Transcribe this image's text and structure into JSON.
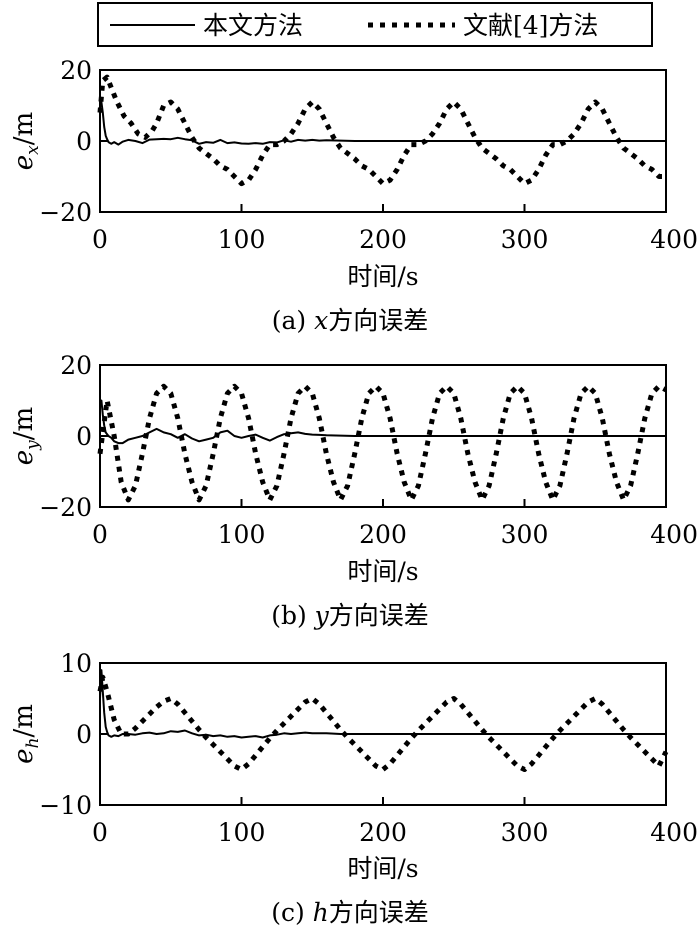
{
  "legend": {
    "items": [
      {
        "label": "本文方法",
        "style": "solid"
      },
      {
        "label": "文献[4]方法",
        "style": "dotted"
      }
    ]
  },
  "colors": {
    "line": "#000000",
    "background": "#ffffff"
  },
  "chart_data": [
    {
      "type": "line",
      "ylabel": {
        "var": "e",
        "sub": "x",
        "unit": "/m"
      },
      "xlabel": "时间/s",
      "caption": {
        "prefix": "(a) ",
        "var": "x",
        "suffix": "方向误差"
      },
      "xlim": [
        0,
        400
      ],
      "ylim": [
        -20,
        20
      ],
      "xticks": [
        0,
        100,
        200,
        300,
        400
      ],
      "yticks": [
        -20,
        0,
        20
      ],
      "grid": false,
      "series": [
        {
          "name": "本文方法",
          "style": "solid",
          "x": [
            0,
            1,
            2,
            3,
            4,
            5,
            6,
            8,
            10,
            13,
            16,
            20,
            25,
            30,
            35,
            40,
            45,
            50,
            55,
            60,
            65,
            70,
            75,
            80,
            85,
            90,
            95,
            100,
            105,
            110,
            115,
            120,
            125,
            130,
            135,
            140,
            145,
            150,
            155,
            160,
            170,
            180,
            200,
            250,
            300,
            350,
            400
          ],
          "y": [
            10,
            11,
            8,
            4,
            1.5,
            0.5,
            -0.3,
            -0.8,
            -0.3,
            -1,
            -0.2,
            0.3,
            0,
            -0.6,
            0.4,
            0.5,
            0.6,
            0.5,
            0.9,
            0.5,
            0.2,
            -0.8,
            -0.3,
            -0.5,
            0.3,
            -0.6,
            -0.4,
            -0.7,
            -0.8,
            -0.6,
            -0.8,
            -0.3,
            -0.4,
            0.2,
            -0.2,
            0.3,
            0.1,
            0.3,
            0.1,
            0.2,
            0.1,
            0,
            0,
            0,
            0,
            0,
            0
          ]
        },
        {
          "name": "文献[4]方法",
          "style": "dotted",
          "x": [
            0,
            2,
            5,
            8,
            12,
            17,
            22,
            27,
            32,
            37,
            40,
            45,
            50,
            55,
            60,
            65,
            70,
            75,
            80,
            85,
            90,
            95,
            100,
            105,
            110,
            115,
            120,
            125,
            130,
            135,
            140,
            145,
            150,
            155,
            160,
            165,
            170,
            175,
            180,
            185,
            190,
            195,
            200,
            205,
            210,
            215,
            220,
            225,
            230,
            235,
            240,
            245,
            250,
            255,
            260,
            265,
            270,
            275,
            280,
            285,
            290,
            295,
            300,
            305,
            310,
            315,
            320,
            325,
            330,
            335,
            340,
            345,
            350,
            355,
            360,
            365,
            370,
            375,
            380,
            385,
            390,
            395,
            400
          ],
          "y": [
            8,
            17,
            18,
            15,
            11,
            7,
            5,
            2,
            1,
            3,
            5,
            10,
            11,
            9,
            5,
            1,
            -2,
            -3.5,
            -5,
            -7,
            -8,
            -10,
            -12,
            -11,
            -8,
            -4,
            -1,
            -1,
            0,
            2,
            5,
            9,
            11,
            9,
            5,
            1,
            -2,
            -3.5,
            -5,
            -7,
            -8,
            -10,
            -12,
            -11,
            -8,
            -4,
            -1,
            -1,
            0,
            2,
            5,
            9,
            11,
            9,
            5,
            1,
            -2,
            -3.5,
            -5,
            -7,
            -8,
            -10,
            -12,
            -11,
            -8,
            -4,
            -1,
            -1,
            0,
            2,
            5,
            9,
            11,
            9,
            5,
            1,
            -2,
            -3.5,
            -5,
            -7,
            -8,
            -10,
            -10
          ]
        }
      ]
    },
    {
      "type": "line",
      "ylabel": {
        "var": "e",
        "sub": "y",
        "unit": "/m"
      },
      "xlabel": "时间/s",
      "caption": {
        "prefix": "(b) ",
        "var": "y",
        "suffix": "方向误差"
      },
      "xlim": [
        0,
        400
      ],
      "ylim": [
        -20,
        20
      ],
      "xticks": [
        0,
        100,
        200,
        300,
        400
      ],
      "yticks": [
        -20,
        0,
        20
      ],
      "grid": false,
      "series": [
        {
          "name": "本文方法",
          "style": "solid",
          "x": [
            0,
            1,
            2,
            3,
            4,
            5,
            6,
            8,
            10,
            13,
            16,
            20,
            25,
            30,
            35,
            40,
            45,
            50,
            55,
            60,
            65,
            70,
            75,
            80,
            85,
            90,
            95,
            100,
            105,
            110,
            115,
            120,
            125,
            130,
            135,
            140,
            145,
            150,
            155,
            160,
            170,
            180,
            200,
            250,
            300,
            350,
            400
          ],
          "y": [
            9,
            10,
            6,
            3,
            1,
            0.5,
            0,
            -0.5,
            -1.5,
            -2,
            -2,
            -1,
            -0.5,
            0,
            1,
            2,
            1,
            0.5,
            -0.5,
            0.5,
            -0.7,
            -1.5,
            -1,
            -0.5,
            1,
            1.5,
            0,
            -0.5,
            0,
            0.4,
            -0.5,
            -1.3,
            -0.3,
            0.5,
            0.8,
            1,
            0.6,
            0.4,
            0.3,
            0.2,
            0.1,
            0,
            0,
            0,
            0,
            0,
            0
          ]
        },
        {
          "name": "文献[4]方法",
          "style": "dotted",
          "x": [
            0,
            5,
            10,
            15,
            20,
            25,
            30,
            35,
            40,
            45,
            50,
            55,
            60,
            65,
            70,
            75,
            80,
            85,
            90,
            95,
            100,
            105,
            110,
            115,
            120,
            125,
            130,
            135,
            140,
            145,
            150,
            155,
            160,
            165,
            170,
            175,
            180,
            185,
            190,
            195,
            200,
            205,
            210,
            215,
            220,
            225,
            230,
            235,
            240,
            245,
            250,
            255,
            260,
            265,
            270,
            275,
            280,
            285,
            290,
            295,
            300,
            305,
            310,
            315,
            320,
            325,
            330,
            335,
            340,
            345,
            350,
            355,
            360,
            365,
            370,
            375,
            380,
            385,
            390,
            395,
            400
          ],
          "y": [
            -5,
            10,
            0,
            -13,
            -18,
            -14,
            -5,
            5,
            12,
            14,
            12,
            5,
            -5,
            -13,
            -18,
            -14,
            -5,
            5,
            12,
            14,
            12,
            5,
            -5,
            -13,
            -18,
            -14,
            -5,
            5,
            12,
            14,
            12,
            5,
            -5,
            -13,
            -18,
            -14,
            -5,
            5,
            12,
            14,
            12,
            5,
            -5,
            -13,
            -18,
            -14,
            -5,
            5,
            12,
            14,
            12,
            5,
            -5,
            -13,
            -18,
            -14,
            -5,
            5,
            12,
            14,
            12,
            5,
            -5,
            -13,
            -18,
            -14,
            -5,
            5,
            12,
            14,
            12,
            5,
            -5,
            -13,
            -18,
            -14,
            -5,
            5,
            12,
            14,
            13
          ]
        }
      ]
    },
    {
      "type": "line",
      "ylabel": {
        "var": "e",
        "sub": "h",
        "unit": "/m"
      },
      "xlabel": "时间/s",
      "caption": {
        "prefix": "(c) ",
        "var": "h",
        "suffix": "方向误差"
      },
      "xlim": [
        0,
        400
      ],
      "ylim": [
        -10,
        10
      ],
      "xticks": [
        0,
        100,
        200,
        300,
        400
      ],
      "yticks": [
        -10,
        0,
        10
      ],
      "grid": false,
      "series": [
        {
          "name": "本文方法",
          "style": "solid",
          "x": [
            0,
            1,
            2,
            3,
            4,
            5,
            6,
            8,
            10,
            13,
            16,
            20,
            25,
            30,
            35,
            40,
            45,
            50,
            55,
            60,
            65,
            70,
            75,
            80,
            85,
            90,
            95,
            100,
            105,
            110,
            115,
            120,
            125,
            130,
            135,
            140,
            145,
            150,
            155,
            160,
            170,
            180,
            200,
            250,
            300,
            350,
            400
          ],
          "y": [
            5,
            9,
            6,
            3,
            1,
            0.3,
            -0.2,
            -0.4,
            -0.2,
            -0.3,
            0,
            0,
            -0.1,
            0.1,
            0.2,
            0,
            0.1,
            0.4,
            0.3,
            0.5,
            0.1,
            -0.2,
            -0.1,
            -0.3,
            -0.2,
            -0.4,
            -0.3,
            -0.5,
            -0.4,
            -0.3,
            -0.5,
            -0.2,
            -0.1,
            0.1,
            0,
            0.1,
            0.2,
            0.1,
            0.1,
            0.1,
            0,
            0,
            0,
            0,
            0,
            0,
            0
          ]
        },
        {
          "name": "文献[4]方法",
          "style": "dotted",
          "x": [
            0,
            2,
            5,
            10,
            15,
            20,
            25,
            30,
            35,
            40,
            45,
            50,
            55,
            60,
            65,
            70,
            75,
            80,
            85,
            90,
            95,
            100,
            105,
            110,
            115,
            120,
            125,
            130,
            135,
            140,
            145,
            150,
            155,
            160,
            165,
            170,
            175,
            180,
            185,
            190,
            195,
            200,
            205,
            210,
            215,
            220,
            225,
            230,
            235,
            240,
            245,
            250,
            255,
            260,
            265,
            270,
            275,
            280,
            285,
            290,
            295,
            300,
            305,
            310,
            315,
            320,
            325,
            330,
            335,
            340,
            345,
            350,
            355,
            360,
            365,
            370,
            375,
            380,
            385,
            390,
            395,
            400
          ],
          "y": [
            6,
            8,
            6,
            2,
            0,
            0,
            0.8,
            1.8,
            2.8,
            3.8,
            4.6,
            5,
            4.2,
            3,
            1.8,
            0.6,
            -0.5,
            -1.5,
            -2.5,
            -3.5,
            -4.5,
            -5,
            -4.2,
            -3,
            -1.8,
            -0.6,
            0.5,
            1.5,
            2.5,
            3.5,
            4.5,
            5,
            4.2,
            3,
            1.8,
            0.6,
            -0.5,
            -1.5,
            -2.5,
            -3.5,
            -4.5,
            -5,
            -4.2,
            -3,
            -1.8,
            -0.6,
            0.5,
            1.5,
            2.5,
            3.5,
            4.5,
            5,
            4.2,
            3,
            1.8,
            0.6,
            -0.5,
            -1.5,
            -2.5,
            -3.5,
            -4.5,
            -5,
            -4.2,
            -3,
            -1.8,
            -0.6,
            0.5,
            1.5,
            2.5,
            3.5,
            4.5,
            5,
            4.2,
            3,
            1.8,
            0.6,
            -0.5,
            -1.5,
            -2.5,
            -3.5,
            -4.5,
            -2.5
          ]
        }
      ]
    }
  ]
}
